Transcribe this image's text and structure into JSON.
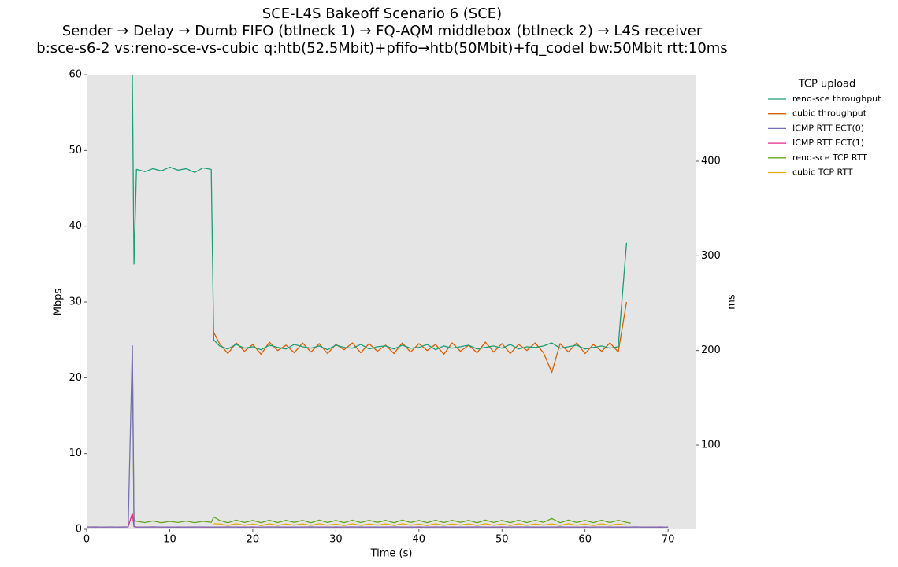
{
  "chart_data": {
    "type": "line",
    "title": "SCE-L4S Bakeoff Scenario 6 (SCE)",
    "subtitle": "Sender → Delay → Dumb FIFO (btlneck 1) → FQ-AQM middlebox (btlneck 2) → L4S receiver",
    "subtitle2": "b:sce-s6-2 vs:reno-sce-vs-cubic q:htb(52.5Mbit)+pfifo→htb(50Mbit)+fq_codel bw:50Mbit rtt:10ms",
    "xlabel": "Time (s)",
    "ylabel": "Mbps",
    "y2label": "ms",
    "legend_title": "TCP upload",
    "legend_position": "outside right",
    "grid": false,
    "xlim": [
      0,
      73.4
    ],
    "xticks": [
      0,
      10,
      20,
      30,
      40,
      50,
      60,
      70
    ],
    "ylim": [
      0,
      60
    ],
    "yticks": [
      0,
      10,
      20,
      30,
      40,
      50,
      60
    ],
    "y2lim": [
      11.1,
      491.4
    ],
    "y2ticks": [
      100,
      200,
      300,
      400
    ],
    "x": [
      0,
      1,
      2,
      3,
      4,
      5,
      5.5,
      5.7,
      6,
      7,
      8,
      9,
      10,
      11,
      12,
      13,
      14,
      15,
      15.3,
      16,
      17,
      18,
      19,
      20,
      21,
      22,
      23,
      24,
      25,
      26,
      27,
      28,
      29,
      30,
      31,
      32,
      33,
      34,
      35,
      36,
      37,
      38,
      39,
      40,
      41,
      42,
      43,
      44,
      45,
      46,
      47,
      48,
      49,
      50,
      51,
      52,
      53,
      54,
      55,
      56,
      57,
      58,
      59,
      60,
      61,
      62,
      63,
      64,
      65,
      65.5,
      66,
      67,
      68,
      69,
      70
    ],
    "series": [
      {
        "name": "reno-sce throughput",
        "color": "#1b9e77",
        "axis": "y",
        "values": [
          null,
          null,
          null,
          null,
          null,
          null,
          60,
          35,
          47.5,
          47.2,
          47.6,
          47.3,
          47.8,
          47.4,
          47.6,
          47.1,
          47.7,
          47.5,
          25,
          24.2,
          23.8,
          24.4,
          23.9,
          24.1,
          23.7,
          24.3,
          24.0,
          23.8,
          24.4,
          24.1,
          23.9,
          24.2,
          23.7,
          24.3,
          24.0,
          23.9,
          24.4,
          23.8,
          24.1,
          24.2,
          23.8,
          24.3,
          23.9,
          24.0,
          24.4,
          23.7,
          24.2,
          23.9,
          24.1,
          24.3,
          23.8,
          24.0,
          24.2,
          23.9,
          24.4,
          23.8,
          24.1,
          24.0,
          24.2,
          24.6,
          23.9,
          24.1,
          24.3,
          23.8,
          24.0,
          24.2,
          23.9,
          24.1,
          37.8,
          null,
          null,
          null,
          null,
          null,
          null
        ]
      },
      {
        "name": "cubic throughput",
        "color": "#d95f02",
        "axis": "y",
        "values": [
          null,
          null,
          null,
          null,
          null,
          null,
          null,
          null,
          null,
          null,
          null,
          null,
          null,
          null,
          null,
          null,
          null,
          null,
          26,
          24.5,
          23.2,
          24.6,
          23.5,
          24.4,
          23.1,
          24.7,
          23.6,
          24.3,
          23.3,
          24.6,
          23.4,
          24.5,
          23.2,
          24.4,
          23.7,
          24.6,
          23.3,
          24.5,
          23.5,
          24.3,
          23.2,
          24.6,
          23.4,
          24.5,
          23.6,
          24.4,
          23.1,
          24.6,
          23.5,
          24.3,
          23.3,
          24.7,
          23.4,
          24.5,
          23.2,
          24.4,
          23.6,
          24.6,
          23.3,
          20.7,
          24.5,
          23.4,
          24.6,
          23.2,
          24.4,
          23.5,
          24.6,
          23.4,
          30,
          null,
          null,
          null,
          null,
          null,
          null
        ]
      },
      {
        "name": "ICMP RTT ECT(0)",
        "color": "#7570b3",
        "axis": "y2",
        "values": [
          13.6,
          13.4,
          13.5,
          13.6,
          13.4,
          13.5,
          205,
          14.2,
          13.5,
          13.4,
          13.6,
          13.5,
          13.3,
          13.6,
          13.4,
          13.5,
          13.6,
          13.4,
          13.5,
          13.4,
          13.6,
          13.5,
          13.3,
          13.6,
          13.4,
          13.5,
          13.6,
          13.4,
          13.5,
          13.4,
          13.6,
          13.5,
          13.3,
          13.6,
          13.4,
          13.5,
          13.6,
          13.4,
          13.5,
          13.4,
          13.6,
          13.5,
          13.3,
          13.6,
          13.4,
          13.5,
          13.6,
          13.4,
          13.5,
          13.4,
          13.6,
          13.5,
          13.3,
          13.6,
          13.4,
          13.5,
          13.6,
          13.4,
          13.5,
          13.4,
          13.6,
          13.5,
          13.3,
          13.6,
          13.4,
          13.5,
          13.6,
          13.4,
          13.5,
          13.4,
          13.6,
          13.5,
          13.3,
          13.6,
          13.4
        ]
      },
      {
        "name": "ICMP RTT ECT(1)",
        "color": "#e7298a",
        "axis": "y2",
        "values": [
          13.5,
          13.6,
          13.4,
          13.5,
          13.5,
          13.7,
          28,
          13.8,
          13.4,
          13.5,
          13.6,
          13.4,
          13.5,
          13.3,
          13.5,
          13.6,
          13.4,
          13.5,
          13.4,
          13.5,
          13.6,
          13.4,
          13.5,
          13.3,
          13.5,
          13.6,
          13.4,
          13.5,
          13.4,
          13.5,
          13.6,
          13.4,
          13.5,
          13.3,
          13.5,
          13.6,
          13.4,
          13.5,
          13.4,
          13.5,
          13.6,
          13.4,
          13.5,
          13.3,
          13.5,
          13.6,
          13.4,
          13.5,
          13.4,
          13.5,
          13.6,
          13.4,
          13.5,
          13.3,
          13.5,
          13.6,
          13.4,
          13.5,
          13.4,
          13.5,
          13.6,
          13.4,
          13.5,
          13.3,
          13.5,
          13.6,
          13.4,
          13.5,
          13.4,
          13.5,
          13.6,
          13.4,
          13.5,
          13.3,
          13.5
        ]
      },
      {
        "name": "reno-sce TCP RTT",
        "color": "#66a61e",
        "axis": "y2",
        "values": [
          null,
          null,
          null,
          null,
          null,
          null,
          205,
          21,
          19.5,
          18.2,
          19.8,
          18.0,
          19.4,
          18.3,
          19.7,
          18.1,
          19.5,
          18.4,
          24,
          20.5,
          18.0,
          20.8,
          18.3,
          20.4,
          18.1,
          20.7,
          18.2,
          20.6,
          18.4,
          20.5,
          18.0,
          20.8,
          18.3,
          20.4,
          18.1,
          20.7,
          18.2,
          20.6,
          18.4,
          20.5,
          18.0,
          20.8,
          18.3,
          20.4,
          18.1,
          20.7,
          18.2,
          20.6,
          18.4,
          20.5,
          18.0,
          20.8,
          18.3,
          20.4,
          18.1,
          20.7,
          18.2,
          20.6,
          18.4,
          22.5,
          18.0,
          20.8,
          18.3,
          20.4,
          18.1,
          20.7,
          18.2,
          20.6,
          18.4,
          17.5,
          null,
          null,
          null,
          null,
          null
        ]
      },
      {
        "name": "cubic TCP RTT",
        "color": "#e6ab02",
        "axis": "y2",
        "values": [
          null,
          null,
          null,
          null,
          null,
          null,
          null,
          null,
          null,
          null,
          null,
          null,
          null,
          null,
          null,
          null,
          null,
          null,
          17,
          16.8,
          15.2,
          17.0,
          15.4,
          16.6,
          15.1,
          16.9,
          15.3,
          16.7,
          15.5,
          16.8,
          15.2,
          17.0,
          15.4,
          16.6,
          15.1,
          16.9,
          15.3,
          16.7,
          15.5,
          16.8,
          15.2,
          17.0,
          15.4,
          16.6,
          15.1,
          16.9,
          15.3,
          16.7,
          15.5,
          16.8,
          15.2,
          17.0,
          15.4,
          16.6,
          15.1,
          16.9,
          15.3,
          16.7,
          15.5,
          16.8,
          15.2,
          17.0,
          15.4,
          16.6,
          15.1,
          16.9,
          15.3,
          16.7,
          15.5,
          null,
          null,
          null,
          null,
          null,
          null
        ]
      }
    ]
  }
}
